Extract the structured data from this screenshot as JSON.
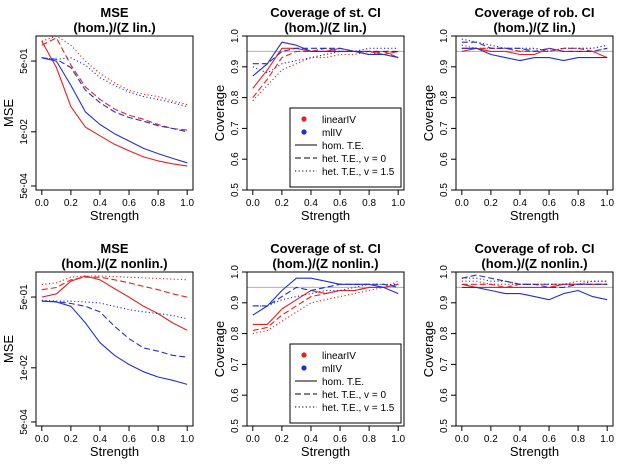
{
  "figure": {
    "colors": {
      "linearIV": "#e8211c",
      "mlIV": "#1f2fd8",
      "ref": "#b0b0b0"
    },
    "xlabel": "Strength",
    "x_ticks": [
      "0.0",
      "0.2",
      "0.4",
      "0.6",
      "0.8",
      "1.0"
    ],
    "legend": {
      "methods": [
        {
          "label": "linearIV",
          "color": "#e8211c"
        },
        {
          "label": "mlIV",
          "color": "#1f2fd8"
        }
      ],
      "styles": [
        {
          "label": "hom. T.E.",
          "dash": "solid"
        },
        {
          "label": "het. T.E., v = 0",
          "dash": "dashed"
        },
        {
          "label": "het. T.E., v = 1.5",
          "dash": "dotted"
        }
      ]
    }
  },
  "chart_data": [
    {
      "id": "mse-lin",
      "type": "line",
      "title_line1": "MSE",
      "title_line2": "(hom.)/(Z lin.)",
      "ylabel": "MSE",
      "yscale": "log",
      "ylim": [
        0.0004,
        2.0
      ],
      "y_ticks": [
        {
          "value": 0.5,
          "label": "5e-01"
        },
        {
          "value": 0.01,
          "label": "1e-02"
        },
        {
          "value": 0.0005,
          "label": "5e-04"
        }
      ],
      "ref_line": null,
      "x": [
        0.0,
        0.1,
        0.2,
        0.3,
        0.4,
        0.5,
        0.6,
        0.7,
        0.8,
        0.9,
        1.0
      ],
      "series": [
        {
          "name": "linearIV hom.",
          "method": "linearIV",
          "dash": "solid",
          "values": [
            1.5,
            0.35,
            0.04,
            0.013,
            0.008,
            0.005,
            0.0035,
            0.0025,
            0.002,
            0.0017,
            0.0015
          ]
        },
        {
          "name": "linearIV het. v=0",
          "method": "linearIV",
          "dash": "dashed",
          "values": [
            1.2,
            1.8,
            0.4,
            0.12,
            0.06,
            0.035,
            0.025,
            0.02,
            0.015,
            0.012,
            0.011
          ]
        },
        {
          "name": "linearIV het. v=1.5",
          "method": "linearIV",
          "dash": "dotted",
          "values": [
            1.5,
            2.0,
            1.2,
            0.5,
            0.25,
            0.15,
            0.1,
            0.08,
            0.07,
            0.055,
            0.045
          ]
        },
        {
          "name": "mlIV hom.",
          "method": "mlIV",
          "dash": "solid",
          "values": [
            0.6,
            0.5,
            0.13,
            0.03,
            0.015,
            0.009,
            0.006,
            0.004,
            0.003,
            0.0023,
            0.0018
          ]
        },
        {
          "name": "mlIV het. v=0",
          "method": "mlIV",
          "dash": "dashed",
          "values": [
            0.6,
            0.55,
            0.35,
            0.1,
            0.05,
            0.03,
            0.022,
            0.018,
            0.014,
            0.012,
            0.01
          ]
        },
        {
          "name": "mlIV het. v=1.5",
          "method": "mlIV",
          "dash": "dotted",
          "values": [
            0.6,
            0.55,
            0.6,
            0.4,
            0.2,
            0.13,
            0.09,
            0.07,
            0.06,
            0.05,
            0.04
          ]
        }
      ]
    },
    {
      "id": "cov-st-lin",
      "type": "line",
      "title_line1": "Coverage of st. CI",
      "title_line2": "(hom.)/(Z lin.)",
      "ylabel": "Coverage",
      "yscale": "linear",
      "ylim": [
        0.5,
        1.0
      ],
      "y_ticks": [
        {
          "value": 0.5,
          "label": "0.5"
        },
        {
          "value": 0.6,
          "label": "0.6"
        },
        {
          "value": 0.7,
          "label": "0.7"
        },
        {
          "value": 0.8,
          "label": "0.8"
        },
        {
          "value": 0.9,
          "label": "0.9"
        },
        {
          "value": 1.0,
          "label": "1.0"
        }
      ],
      "ref_line": 0.95,
      "show_legend": true,
      "x": [
        0.0,
        0.1,
        0.2,
        0.3,
        0.4,
        0.5,
        0.6,
        0.7,
        0.8,
        0.9,
        1.0
      ],
      "series": [
        {
          "name": "linearIV hom.",
          "method": "linearIV",
          "dash": "solid",
          "values": [
            0.83,
            0.89,
            0.96,
            0.96,
            0.95,
            0.95,
            0.96,
            0.95,
            0.95,
            0.94,
            0.95
          ]
        },
        {
          "name": "linearIV het. v=0",
          "method": "linearIV",
          "dash": "dashed",
          "values": [
            0.8,
            0.86,
            0.93,
            0.95,
            0.95,
            0.96,
            0.95,
            0.95,
            0.94,
            0.95,
            0.93
          ]
        },
        {
          "name": "linearIV het. v=1.5",
          "method": "linearIV",
          "dash": "dotted",
          "values": [
            0.79,
            0.84,
            0.89,
            0.91,
            0.93,
            0.93,
            0.94,
            0.94,
            0.95,
            0.95,
            0.93
          ]
        },
        {
          "name": "mlIV hom.",
          "method": "mlIV",
          "dash": "solid",
          "values": [
            0.87,
            0.91,
            0.98,
            0.97,
            0.95,
            0.95,
            0.95,
            0.95,
            0.94,
            0.94,
            0.93
          ]
        },
        {
          "name": "mlIV het. v=0",
          "method": "mlIV",
          "dash": "dashed",
          "values": [
            0.91,
            0.91,
            0.95,
            0.96,
            0.96,
            0.96,
            0.96,
            0.95,
            0.95,
            0.95,
            0.95
          ]
        },
        {
          "name": "mlIV het. v=1.5",
          "method": "mlIV",
          "dash": "dotted",
          "values": [
            0.9,
            0.88,
            0.91,
            0.92,
            0.93,
            0.94,
            0.95,
            0.95,
            0.96,
            0.96,
            0.96
          ]
        }
      ]
    },
    {
      "id": "cov-rob-lin",
      "type": "line",
      "title_line1": "Coverage of rob. CI",
      "title_line2": "(hom.)/(Z lin.)",
      "ylabel": "Coverage",
      "yscale": "linear",
      "ylim": [
        0.5,
        1.0
      ],
      "y_ticks": [
        {
          "value": 0.5,
          "label": "0.5"
        },
        {
          "value": 0.6,
          "label": "0.6"
        },
        {
          "value": 0.7,
          "label": "0.7"
        },
        {
          "value": 0.8,
          "label": "0.8"
        },
        {
          "value": 0.9,
          "label": "0.9"
        },
        {
          "value": 1.0,
          "label": "1.0"
        }
      ],
      "ref_line": 0.95,
      "x": [
        0.0,
        0.1,
        0.2,
        0.3,
        0.4,
        0.5,
        0.6,
        0.7,
        0.8,
        0.9,
        1.0
      ],
      "series": [
        {
          "name": "linearIV hom.",
          "method": "linearIV",
          "dash": "solid",
          "values": [
            0.95,
            0.96,
            0.95,
            0.95,
            0.94,
            0.94,
            0.96,
            0.95,
            0.95,
            0.95,
            0.93
          ]
        },
        {
          "name": "linearIV het. v=0",
          "method": "linearIV",
          "dash": "dashed",
          "values": [
            0.96,
            0.96,
            0.96,
            0.96,
            0.95,
            0.95,
            0.95,
            0.96,
            0.96,
            0.95,
            0.96
          ]
        },
        {
          "name": "linearIV het. v=1.5",
          "method": "linearIV",
          "dash": "dotted",
          "values": [
            0.97,
            0.96,
            0.96,
            0.96,
            0.95,
            0.96,
            0.95,
            0.96,
            0.96,
            0.96,
            0.97
          ]
        },
        {
          "name": "mlIV hom.",
          "method": "mlIV",
          "dash": "solid",
          "values": [
            0.96,
            0.96,
            0.94,
            0.93,
            0.92,
            0.93,
            0.93,
            0.92,
            0.93,
            0.93,
            0.93
          ]
        },
        {
          "name": "mlIV het. v=0",
          "method": "mlIV",
          "dash": "dashed",
          "values": [
            0.98,
            0.98,
            0.96,
            0.96,
            0.96,
            0.95,
            0.96,
            0.95,
            0.95,
            0.95,
            0.96
          ]
        },
        {
          "name": "mlIV het. v=1.5",
          "method": "mlIV",
          "dash": "dotted",
          "values": [
            0.99,
            0.98,
            0.97,
            0.96,
            0.96,
            0.96,
            0.95,
            0.96,
            0.96,
            0.96,
            0.97
          ]
        }
      ]
    },
    {
      "id": "mse-nonlin",
      "type": "line",
      "title_line1": "MSE",
      "title_line2": "(hom.)/(Z nonlin.)",
      "ylabel": "MSE",
      "yscale": "log",
      "ylim": [
        0.0004,
        2.0
      ],
      "y_ticks": [
        {
          "value": 0.5,
          "label": "5e-01"
        },
        {
          "value": 0.01,
          "label": "1e-02"
        },
        {
          "value": 0.0005,
          "label": "5e-04"
        }
      ],
      "ref_line": null,
      "x": [
        0.0,
        0.1,
        0.2,
        0.3,
        0.4,
        0.5,
        0.6,
        0.7,
        0.8,
        0.9,
        1.0
      ],
      "series": [
        {
          "name": "linearIV hom.",
          "method": "linearIV",
          "dash": "solid",
          "values": [
            0.5,
            0.6,
            1.2,
            1.6,
            1.3,
            0.8,
            0.5,
            0.3,
            0.2,
            0.12,
            0.08
          ]
        },
        {
          "name": "linearIV het. v=0",
          "method": "linearIV",
          "dash": "dashed",
          "values": [
            0.75,
            0.85,
            1.3,
            1.5,
            1.5,
            1.3,
            1.1,
            0.9,
            0.75,
            0.6,
            0.5
          ]
        },
        {
          "name": "linearIV het. v=1.5",
          "method": "linearIV",
          "dash": "dotted",
          "values": [
            1.0,
            1.1,
            1.5,
            1.6,
            1.6,
            1.55,
            1.5,
            1.45,
            1.4,
            1.35,
            1.3
          ]
        },
        {
          "name": "mlIV hom.",
          "method": "mlIV",
          "dash": "solid",
          "values": [
            0.4,
            0.38,
            0.3,
            0.12,
            0.04,
            0.02,
            0.012,
            0.008,
            0.006,
            0.005,
            0.004
          ]
        },
        {
          "name": "mlIV het. v=0",
          "method": "mlIV",
          "dash": "dashed",
          "values": [
            0.4,
            0.39,
            0.35,
            0.3,
            0.22,
            0.1,
            0.05,
            0.03,
            0.025,
            0.02,
            0.018
          ]
        },
        {
          "name": "mlIV het. v=1.5",
          "method": "mlIV",
          "dash": "dotted",
          "values": [
            0.42,
            0.4,
            0.4,
            0.38,
            0.36,
            0.3,
            0.25,
            0.22,
            0.2,
            0.18,
            0.15
          ]
        }
      ]
    },
    {
      "id": "cov-st-nonlin",
      "type": "line",
      "title_line1": "Coverage of st. CI",
      "title_line2": "(hom.)/(Z nonlin.)",
      "ylabel": "Coverage",
      "yscale": "linear",
      "ylim": [
        0.5,
        1.0
      ],
      "y_ticks": [
        {
          "value": 0.5,
          "label": "0.5"
        },
        {
          "value": 0.6,
          "label": "0.6"
        },
        {
          "value": 0.7,
          "label": "0.7"
        },
        {
          "value": 0.8,
          "label": "0.8"
        },
        {
          "value": 0.9,
          "label": "0.9"
        },
        {
          "value": 1.0,
          "label": "1.0"
        }
      ],
      "ref_line": 0.95,
      "show_legend": true,
      "x": [
        0.0,
        0.1,
        0.2,
        0.3,
        0.4,
        0.5,
        0.6,
        0.7,
        0.8,
        0.9,
        1.0
      ],
      "series": [
        {
          "name": "linearIV hom.",
          "method": "linearIV",
          "dash": "solid",
          "values": [
            0.83,
            0.83,
            0.88,
            0.91,
            0.94,
            0.93,
            0.94,
            0.94,
            0.95,
            0.95,
            0.96
          ]
        },
        {
          "name": "linearIV het. v=0",
          "method": "linearIV",
          "dash": "dashed",
          "values": [
            0.81,
            0.82,
            0.86,
            0.89,
            0.92,
            0.93,
            0.94,
            0.94,
            0.95,
            0.95,
            0.96
          ]
        },
        {
          "name": "linearIV het. v=1.5",
          "method": "linearIV",
          "dash": "dotted",
          "values": [
            0.8,
            0.81,
            0.84,
            0.87,
            0.9,
            0.91,
            0.92,
            0.93,
            0.94,
            0.95,
            0.97
          ]
        },
        {
          "name": "mlIV hom.",
          "method": "mlIV",
          "dash": "solid",
          "values": [
            0.86,
            0.89,
            0.94,
            0.98,
            0.98,
            0.97,
            0.96,
            0.96,
            0.96,
            0.95,
            0.93
          ]
        },
        {
          "name": "mlIV het. v=0",
          "method": "mlIV",
          "dash": "dashed",
          "values": [
            0.89,
            0.89,
            0.92,
            0.95,
            0.94,
            0.95,
            0.96,
            0.96,
            0.96,
            0.96,
            0.95
          ]
        },
        {
          "name": "mlIV het. v=1.5",
          "method": "mlIV",
          "dash": "dotted",
          "values": [
            0.89,
            0.89,
            0.91,
            0.92,
            0.93,
            0.94,
            0.94,
            0.95,
            0.96,
            0.96,
            0.96
          ]
        }
      ]
    },
    {
      "id": "cov-rob-nonlin",
      "type": "line",
      "title_line1": "Coverage of rob. CI",
      "title_line2": "(hom.)/(Z nonlin.)",
      "ylabel": "Coverage",
      "yscale": "linear",
      "ylim": [
        0.5,
        1.0
      ],
      "y_ticks": [
        {
          "value": 0.5,
          "label": "0.5"
        },
        {
          "value": 0.6,
          "label": "0.6"
        },
        {
          "value": 0.7,
          "label": "0.7"
        },
        {
          "value": 0.8,
          "label": "0.8"
        },
        {
          "value": 0.9,
          "label": "0.9"
        },
        {
          "value": 1.0,
          "label": "1.0"
        }
      ],
      "ref_line": 0.95,
      "x": [
        0.0,
        0.1,
        0.2,
        0.3,
        0.4,
        0.5,
        0.6,
        0.7,
        0.8,
        0.9,
        1.0
      ],
      "series": [
        {
          "name": "linearIV hom.",
          "method": "linearIV",
          "dash": "solid",
          "values": [
            0.96,
            0.95,
            0.95,
            0.95,
            0.95,
            0.95,
            0.95,
            0.96,
            0.96,
            0.96,
            0.96
          ]
        },
        {
          "name": "linearIV het. v=0",
          "method": "linearIV",
          "dash": "dashed",
          "values": [
            0.96,
            0.96,
            0.96,
            0.95,
            0.96,
            0.96,
            0.96,
            0.96,
            0.96,
            0.96,
            0.96
          ]
        },
        {
          "name": "linearIV het. v=1.5",
          "method": "linearIV",
          "dash": "dotted",
          "values": [
            0.97,
            0.97,
            0.96,
            0.96,
            0.96,
            0.96,
            0.96,
            0.96,
            0.97,
            0.97,
            0.97
          ]
        },
        {
          "name": "mlIV hom.",
          "method": "mlIV",
          "dash": "solid",
          "values": [
            0.95,
            0.95,
            0.94,
            0.93,
            0.93,
            0.92,
            0.91,
            0.93,
            0.94,
            0.92,
            0.91
          ]
        },
        {
          "name": "mlIV het. v=0",
          "method": "mlIV",
          "dash": "dashed",
          "values": [
            0.98,
            0.99,
            0.98,
            0.97,
            0.96,
            0.96,
            0.95,
            0.95,
            0.96,
            0.96,
            0.96
          ]
        },
        {
          "name": "mlIV het. v=1.5",
          "method": "mlIV",
          "dash": "dotted",
          "values": [
            0.98,
            0.98,
            0.97,
            0.97,
            0.96,
            0.96,
            0.96,
            0.96,
            0.96,
            0.97,
            0.97
          ]
        }
      ]
    }
  ]
}
